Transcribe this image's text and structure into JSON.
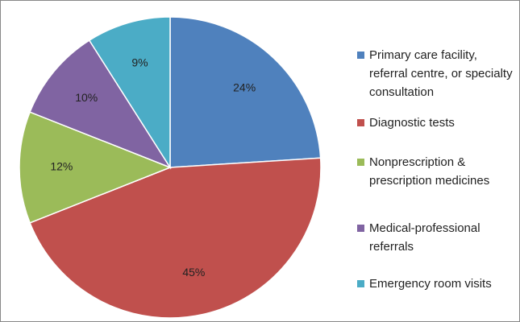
{
  "chart_data": {
    "type": "pie",
    "categories": [
      "Primary care facility, referral centre, or specialty consultation",
      "Diagnostic tests",
      "Nonprescription & prescription medicines",
      "Medical-professional referrals",
      "Emergency room visits"
    ],
    "values": [
      24,
      45,
      12,
      10,
      9
    ],
    "value_labels": [
      "24%",
      "45%",
      "12%",
      "10%",
      "9%"
    ],
    "colors": [
      "#4f81bd",
      "#c0504d",
      "#9bbb59",
      "#8064a2",
      "#4bacc6"
    ],
    "legend": "right"
  }
}
